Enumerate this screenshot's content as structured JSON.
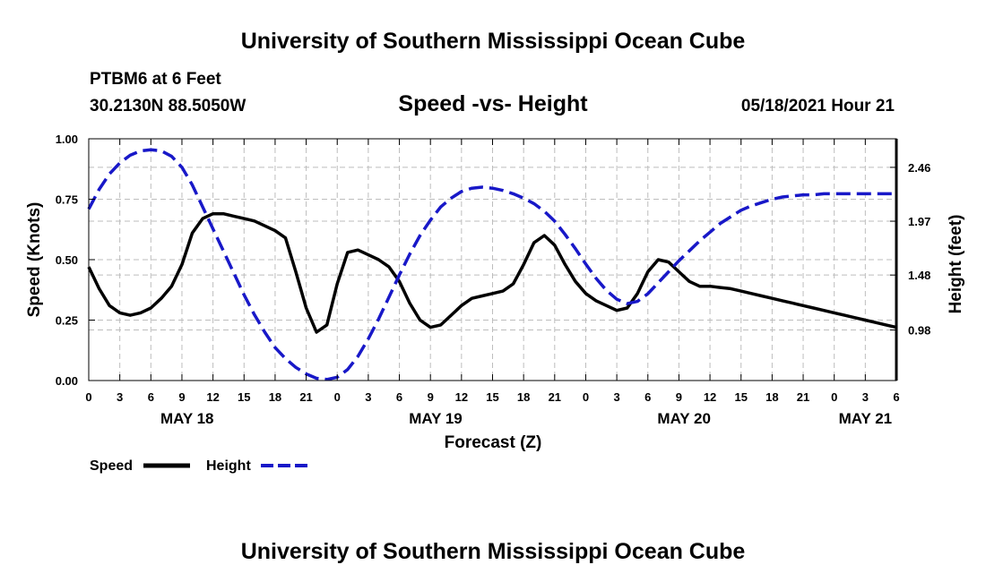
{
  "header": {
    "title": "University of Southern Mississippi Ocean Cube",
    "station": "PTBM6 at 6 Feet",
    "coords": "30.2130N  88.5050W",
    "chart_title": "Speed -vs- Height",
    "datetime": "05/18/2021 Hour 21"
  },
  "footer": {
    "title": "University of Southern Mississippi Ocean Cube"
  },
  "legend": {
    "speed_label": "Speed",
    "height_label": "Height"
  },
  "colors": {
    "speed": "#000000",
    "height": "#1818c8",
    "grid": "#bdbdbd"
  },
  "chart_data": {
    "type": "line",
    "title": "Speed -vs- Height",
    "xlabel": "Forecast (Z)",
    "ylabel": "Speed (Knots)",
    "y2label": "Height (feet)",
    "xlim": [
      0,
      78
    ],
    "x_ticks": [
      0,
      3,
      6,
      9,
      12,
      15,
      18,
      21,
      24,
      27,
      30,
      33,
      36,
      39,
      42,
      45,
      48,
      51,
      54,
      57,
      60,
      63,
      66,
      69,
      72,
      75,
      78
    ],
    "x_tick_labels": [
      "0",
      "3",
      "6",
      "9",
      "12",
      "15",
      "18",
      "21",
      "0",
      "3",
      "6",
      "9",
      "12",
      "15",
      "18",
      "21",
      "0",
      "3",
      "6",
      "9",
      "12",
      "15",
      "18",
      "21",
      "0",
      "3",
      "6"
    ],
    "date_labels": [
      {
        "label": "MAY 18",
        "x": 9.5
      },
      {
        "label": "MAY 19",
        "x": 33.5
      },
      {
        "label": "MAY 20",
        "x": 57.5
      },
      {
        "label": "MAY 21",
        "x": 75
      }
    ],
    "ylim": [
      0,
      1
    ],
    "y_ticks": [
      0,
      0.25,
      0.5,
      0.75,
      1.0
    ],
    "y_tick_labels": [
      "0.00",
      "0.25",
      "0.50",
      "0.75",
      "1.00"
    ],
    "y2lim": [
      0.52,
      2.72
    ],
    "y2_ticks": [
      0.98,
      1.48,
      1.97,
      2.46
    ],
    "y2_tick_labels": [
      "0.98",
      "1.48",
      "1.97",
      "2.46"
    ],
    "series": [
      {
        "name": "Speed",
        "axis": "left",
        "style": "solid",
        "x": [
          0,
          1,
          2,
          3,
          4,
          5,
          6,
          7,
          8,
          9,
          10,
          11,
          12,
          13,
          14,
          15,
          16,
          17,
          18,
          19,
          20,
          21,
          22,
          23,
          24,
          25,
          26,
          27,
          28,
          29,
          30,
          31,
          32,
          33,
          34,
          35,
          36,
          37,
          38,
          39,
          40,
          41,
          42,
          43,
          44,
          45,
          46,
          47,
          48,
          49,
          50,
          51,
          52,
          53,
          54,
          55,
          56,
          57,
          58,
          59,
          60,
          61,
          62,
          63,
          64,
          65,
          66,
          67,
          68,
          69,
          70,
          71,
          72,
          73,
          74,
          75,
          76,
          77,
          78
        ],
        "values": [
          0.47,
          0.38,
          0.31,
          0.28,
          0.27,
          0.28,
          0.3,
          0.34,
          0.39,
          0.48,
          0.61,
          0.67,
          0.69,
          0.69,
          0.68,
          0.67,
          0.66,
          0.64,
          0.62,
          0.59,
          0.45,
          0.3,
          0.2,
          0.23,
          0.4,
          0.53,
          0.54,
          0.52,
          0.5,
          0.47,
          0.41,
          0.32,
          0.25,
          0.22,
          0.23,
          0.27,
          0.31,
          0.34,
          0.35,
          0.36,
          0.37,
          0.4,
          0.48,
          0.57,
          0.6,
          0.56,
          0.48,
          0.41,
          0.36,
          0.33,
          0.31,
          0.29,
          0.3,
          0.36,
          0.45,
          0.5,
          0.49,
          0.45,
          0.41,
          0.39,
          0.39,
          0.385,
          0.38,
          0.37,
          0.36,
          0.35,
          0.34,
          0.33,
          0.32,
          0.31,
          0.3,
          0.29,
          0.28,
          0.27,
          0.26,
          0.25,
          0.24,
          0.23,
          0.22
        ]
      },
      {
        "name": "Height",
        "axis": "right",
        "style": "dashed",
        "x": [
          0,
          1,
          2,
          3,
          4,
          5,
          6,
          7,
          8,
          9,
          10,
          11,
          12,
          13,
          14,
          15,
          16,
          17,
          18,
          19,
          20,
          21,
          22,
          23,
          24,
          25,
          26,
          27,
          28,
          29,
          30,
          31,
          32,
          33,
          34,
          35,
          36,
          37,
          38,
          39,
          40,
          41,
          42,
          43,
          44,
          45,
          46,
          47,
          48,
          49,
          50,
          51,
          52,
          53,
          54,
          55,
          56,
          57,
          58,
          59,
          60,
          61,
          62,
          63,
          64,
          65,
          66,
          67,
          68,
          69,
          70,
          71,
          72,
          73,
          74,
          75,
          76,
          77,
          78
        ],
        "values": [
          2.08,
          2.26,
          2.4,
          2.5,
          2.57,
          2.61,
          2.62,
          2.61,
          2.56,
          2.46,
          2.3,
          2.1,
          1.9,
          1.7,
          1.5,
          1.3,
          1.12,
          0.96,
          0.82,
          0.72,
          0.64,
          0.58,
          0.54,
          0.53,
          0.55,
          0.62,
          0.74,
          0.9,
          1.08,
          1.28,
          1.48,
          1.67,
          1.84,
          1.98,
          2.1,
          2.18,
          2.24,
          2.27,
          2.28,
          2.27,
          2.25,
          2.22,
          2.18,
          2.13,
          2.06,
          1.97,
          1.85,
          1.72,
          1.58,
          1.45,
          1.34,
          1.26,
          1.22,
          1.24,
          1.31,
          1.41,
          1.51,
          1.61,
          1.7,
          1.79,
          1.87,
          1.95,
          2.01,
          2.07,
          2.11,
          2.14,
          2.17,
          2.19,
          2.2,
          2.21,
          2.21,
          2.22,
          2.22,
          2.22,
          2.22,
          2.22,
          2.22,
          2.22,
          2.22
        ]
      }
    ]
  }
}
